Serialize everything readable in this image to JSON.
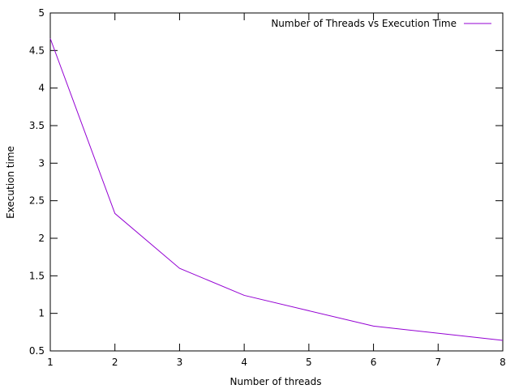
{
  "chart_data": {
    "type": "line",
    "title": "",
    "xlabel": "Number of threads",
    "ylabel": "Execution time",
    "xlim": [
      1,
      8
    ],
    "ylim": [
      0.5,
      5
    ],
    "xticks": [
      1,
      2,
      3,
      4,
      5,
      6,
      7,
      8
    ],
    "yticks": [
      0.5,
      1,
      1.5,
      2,
      2.5,
      3,
      3.5,
      4,
      4.5,
      5
    ],
    "ytick_labels": [
      "0.5",
      "1",
      "1.5",
      "2",
      "2.5",
      "3",
      "3.5",
      "4",
      "4.5",
      "5"
    ],
    "grid": false,
    "legend_position": "top-right",
    "series": [
      {
        "name": "Number of Threads vs Execution Time",
        "color": "#9400d3",
        "x": [
          1,
          2,
          3,
          4,
          6,
          8
        ],
        "y": [
          4.66,
          2.33,
          1.6,
          1.24,
          0.83,
          0.64
        ]
      }
    ]
  }
}
